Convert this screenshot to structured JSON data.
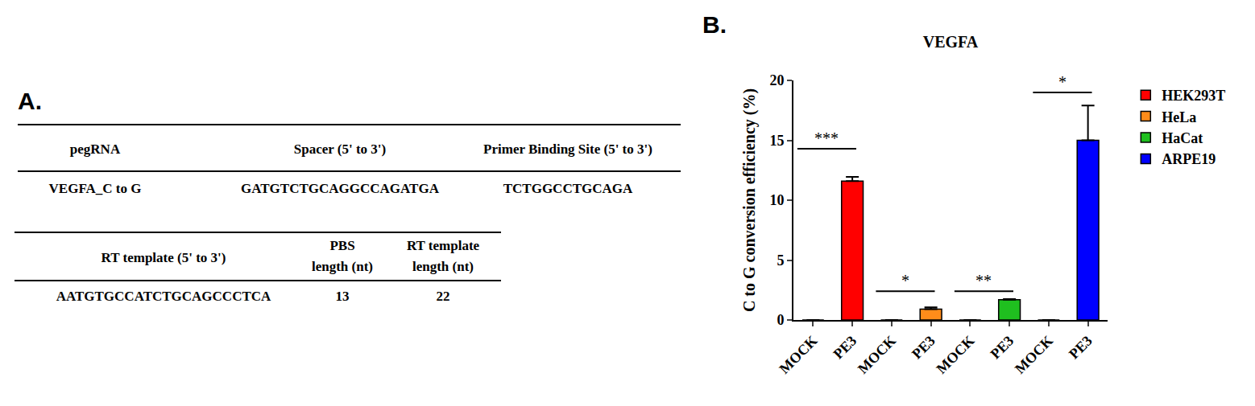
{
  "panel_a": {
    "label": "A.",
    "table1": {
      "columns": [
        "pegRNA",
        "Spacer (5' to 3')",
        "Primer Binding Site (5' to 3')"
      ],
      "rows": [
        [
          "VEGFA_C to G",
          "GATGTCTGCAGGCCAGATGA",
          "TCTGGCCTGCAGA"
        ]
      ]
    },
    "table2": {
      "columns": [
        [
          "RT template (5' to 3')"
        ],
        [
          "PBS",
          "length (nt)"
        ],
        [
          "RT template",
          "length (nt)"
        ]
      ],
      "rows": [
        [
          "AATGTGCCATCTGCAGCCCTCA",
          13,
          22
        ]
      ]
    }
  },
  "chart_data": {
    "panel_label": "B.",
    "type": "bar",
    "title": "VEGFA",
    "y_label": "C to G conversion efficiency (%)",
    "categories": [
      "MOCK",
      "PE3",
      "MOCK",
      "PE3",
      "MOCK",
      "PE3",
      "MOCK",
      "PE3"
    ],
    "series": [
      {
        "name": "HEK293T",
        "color": "#ff0000",
        "values": [
          0,
          11.6,
          null,
          null,
          null,
          null,
          null,
          null
        ],
        "errors": [
          0,
          0.35,
          null,
          null,
          null,
          null,
          null,
          null
        ]
      },
      {
        "name": "HeLa",
        "color": "#ff8c1a",
        "values": [
          null,
          null,
          0,
          0.9,
          null,
          null,
          null,
          null
        ],
        "errors": [
          null,
          null,
          0,
          0.15,
          null,
          null,
          null,
          null
        ]
      },
      {
        "name": "HaCat",
        "color": "#1fbf1f",
        "values": [
          null,
          null,
          null,
          null,
          0,
          1.7,
          null,
          null
        ],
        "errors": [
          null,
          null,
          null,
          null,
          0,
          0.05,
          null,
          null
        ]
      },
      {
        "name": "ARPE19",
        "color": "#0000ff",
        "values": [
          null,
          null,
          null,
          null,
          null,
          null,
          0,
          15.0
        ],
        "errors": [
          null,
          null,
          null,
          null,
          null,
          null,
          0,
          2.9
        ]
      }
    ],
    "annotations": [
      {
        "text": "***",
        "from": 0,
        "to": 1,
        "y": 14.3
      },
      {
        "text": "*",
        "from": 2,
        "to": 3,
        "y": 2.4
      },
      {
        "text": "**",
        "from": 4,
        "to": 5,
        "y": 2.4
      },
      {
        "text": "*",
        "from": 6,
        "to": 7,
        "y": 19.0
      }
    ],
    "ylim": [
      0,
      20
    ],
    "yticks": [
      0,
      5,
      10,
      15,
      20
    ],
    "grid": false,
    "legend": "right"
  }
}
